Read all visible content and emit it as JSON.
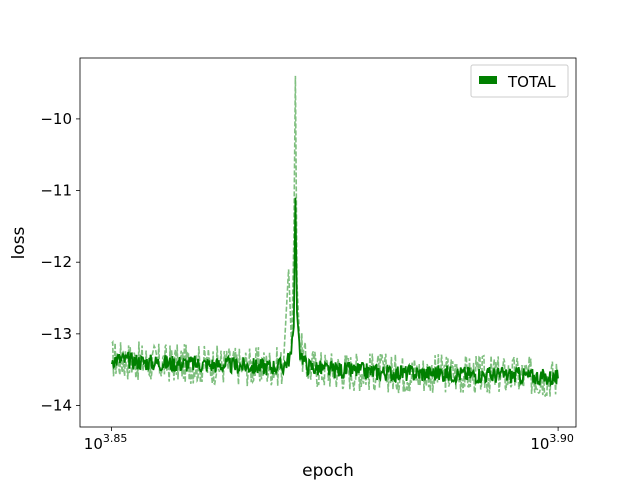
{
  "chart_data": {
    "type": "line",
    "title": "",
    "xlabel": "epoch",
    "ylabel": "loss",
    "x_scale": "log10",
    "xlim": [
      7022,
      7980
    ],
    "ylim": [
      -14.3,
      -9.15
    ],
    "x_ticks": [
      {
        "value": 7079.46,
        "base": "10",
        "exp": "3.85"
      },
      {
        "value": 7943.28,
        "base": "10",
        "exp": "3.90"
      }
    ],
    "y_ticks": [
      {
        "value": -10,
        "label": "−10"
      },
      {
        "value": -11,
        "label": "−11"
      },
      {
        "value": -12,
        "label": "−12"
      },
      {
        "value": -13,
        "label": "−13"
      },
      {
        "value": -14,
        "label": "−14"
      }
    ],
    "grid": false,
    "legend": {
      "placement": "top-right",
      "entries": [
        {
          "label": "TOTAL",
          "color": "#008000"
        }
      ]
    },
    "series": [
      {
        "name": "TOTAL",
        "style": "solid",
        "color": "#008000",
        "x": [
          7080,
          7150,
          7230,
          7300,
          7360,
          7400,
          7415,
          7420,
          7423,
          7426,
          7432,
          7445,
          7480,
          7550,
          7620,
          7700,
          7780,
          7860,
          7943
        ],
        "y": [
          -13.35,
          -13.4,
          -13.42,
          -13.44,
          -13.46,
          -13.45,
          -13.3,
          -12.9,
          -11.1,
          -12.7,
          -13.25,
          -13.45,
          -13.5,
          -13.52,
          -13.55,
          -13.55,
          -13.57,
          -13.58,
          -13.62
        ]
      },
      {
        "name": "",
        "style": "dashed",
        "color": "#7fbf7f",
        "x": [
          7080,
          7150,
          7230,
          7300,
          7360,
          7400,
          7410,
          7416,
          7420,
          7423,
          7426,
          7432,
          7445,
          7480,
          7550,
          7620,
          7700,
          7780,
          7860,
          7943
        ],
        "y": [
          -13.35,
          -13.4,
          -13.42,
          -13.44,
          -13.46,
          -13.45,
          -12.1,
          -13.2,
          -11.7,
          -9.4,
          -12.3,
          -13.2,
          -13.45,
          -13.5,
          -13.52,
          -13.55,
          -13.55,
          -13.57,
          -13.58,
          -13.62
        ]
      }
    ]
  }
}
